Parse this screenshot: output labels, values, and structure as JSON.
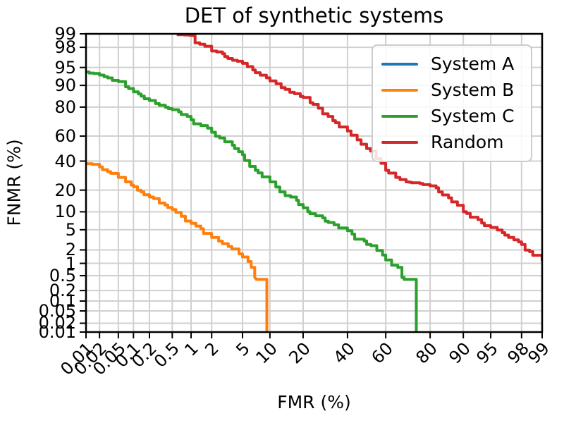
{
  "chart_data": {
    "type": "line",
    "title": "DET of synthetic systems",
    "xlabel": "FMR (%)",
    "ylabel": "FNMR (%)",
    "scale": "probit (normal-deviate) scale on both axes, DET curve style",
    "grid": true,
    "legend_position": "upper right",
    "xlim_pct": [
      0.01,
      99
    ],
    "ylim_pct": [
      0.01,
      99
    ],
    "x_ticks_pct": [
      0.01,
      0.02,
      0.05,
      0.1,
      0.2,
      0.5,
      1,
      2,
      5,
      10,
      20,
      40,
      60,
      80,
      90,
      95,
      98,
      99
    ],
    "x_tick_labels": [
      "0.01",
      "0.02",
      "0.05",
      "0.1",
      "0.2",
      "0.5",
      "1",
      "2",
      "5",
      "10",
      "20",
      "40",
      "60",
      "80",
      "90",
      "95",
      "98",
      "99"
    ],
    "y_ticks_pct": [
      0.01,
      0.02,
      0.05,
      0.1,
      0.2,
      0.5,
      1,
      2,
      5,
      10,
      20,
      40,
      60,
      80,
      90,
      95,
      98,
      99
    ],
    "y_tick_labels": [
      "0.01",
      "0.02",
      "0.05",
      "0.1",
      "0.2",
      "0.5",
      "1",
      "2",
      "5",
      "10",
      "20",
      "40",
      "60",
      "80",
      "90",
      "95",
      "98",
      "99"
    ],
    "series": [
      {
        "name": "System A",
        "color": "#1f77b4",
        "visible_in_plot": false,
        "points_fmr_fnmr_pct": []
      },
      {
        "name": "System B",
        "color": "#ff7f0e",
        "visible_in_plot": true,
        "points_fmr_fnmr_pct": [
          [
            0.01,
            38
          ],
          [
            0.014,
            37.5
          ],
          [
            0.02,
            35.5
          ],
          [
            0.03,
            32
          ],
          [
            0.05,
            28
          ],
          [
            0.07,
            25
          ],
          [
            0.1,
            22
          ],
          [
            0.14,
            19
          ],
          [
            0.2,
            16.3
          ],
          [
            0.3,
            13.5
          ],
          [
            0.5,
            10.8
          ],
          [
            0.7,
            8.5
          ],
          [
            1,
            6.5
          ],
          [
            1.4,
            5.2
          ],
          [
            2,
            3.6
          ],
          [
            2.8,
            2.7
          ],
          [
            3.7,
            2.1
          ],
          [
            5,
            1.4
          ],
          [
            5.8,
            1.1
          ],
          [
            6.3,
            0.8
          ],
          [
            6.9,
            0.45
          ],
          [
            7.2,
            0.4
          ],
          [
            9.3,
            0.4
          ],
          [
            9.3,
            0.01
          ]
        ]
      },
      {
        "name": "System C",
        "color": "#2ca02c",
        "visible_in_plot": true,
        "points_fmr_fnmr_pct": [
          [
            0.01,
            94
          ],
          [
            0.015,
            93.6
          ],
          [
            0.02,
            93.2
          ],
          [
            0.03,
            92.4
          ],
          [
            0.05,
            91.3
          ],
          [
            0.07,
            89.5
          ],
          [
            0.1,
            87.5
          ],
          [
            0.14,
            85.6
          ],
          [
            0.2,
            83.5
          ],
          [
            0.3,
            81
          ],
          [
            0.5,
            78.5
          ],
          [
            0.7,
            75.5
          ],
          [
            1,
            72
          ],
          [
            1.4,
            68
          ],
          [
            2,
            63
          ],
          [
            3,
            55.5
          ],
          [
            4,
            50
          ],
          [
            5,
            45
          ],
          [
            7,
            33
          ],
          [
            10,
            25
          ],
          [
            14,
            17
          ],
          [
            20,
            11.5
          ],
          [
            28,
            8
          ],
          [
            40,
            4.8
          ],
          [
            50,
            2.6
          ],
          [
            60,
            1.2
          ],
          [
            63,
            0.9
          ],
          [
            66,
            0.8
          ],
          [
            68,
            0.45
          ],
          [
            69,
            0.4
          ],
          [
            74.5,
            0.4
          ],
          [
            74.5,
            0.01
          ]
        ]
      },
      {
        "name": "Random",
        "color": "#d62728",
        "visible_in_plot": true,
        "points_fmr_fnmr_pct": [
          [
            0.55,
            99.35
          ],
          [
            0.62,
            98.95
          ],
          [
            1.05,
            98.9
          ],
          [
            1.15,
            98.4
          ],
          [
            1.6,
            98.1
          ],
          [
            2,
            97.6
          ],
          [
            3,
            96.9
          ],
          [
            5,
            95.8
          ],
          [
            7,
            93.8
          ],
          [
            10,
            91.5
          ],
          [
            14,
            88.5
          ],
          [
            20,
            85
          ],
          [
            28,
            76
          ],
          [
            34,
            70
          ],
          [
            40,
            64
          ],
          [
            45,
            57
          ],
          [
            50,
            50
          ],
          [
            55,
            42
          ],
          [
            60,
            33
          ],
          [
            65,
            28
          ],
          [
            70,
            25
          ],
          [
            76,
            24
          ],
          [
            80,
            22.5
          ],
          [
            83,
            19
          ],
          [
            87,
            14
          ],
          [
            90,
            10
          ],
          [
            93,
            7.5
          ],
          [
            95,
            5.5
          ],
          [
            97,
            3.6
          ],
          [
            98,
            2.6
          ],
          [
            99,
            1.2
          ]
        ]
      }
    ]
  },
  "legend": {
    "items": [
      "System A",
      "System B",
      "System C",
      "Random"
    ]
  },
  "colors": {
    "background": "#ffffff",
    "grid": "#d0d0d0",
    "spine": "#000000",
    "text": "#000000",
    "legend_border": "#cccccc"
  }
}
